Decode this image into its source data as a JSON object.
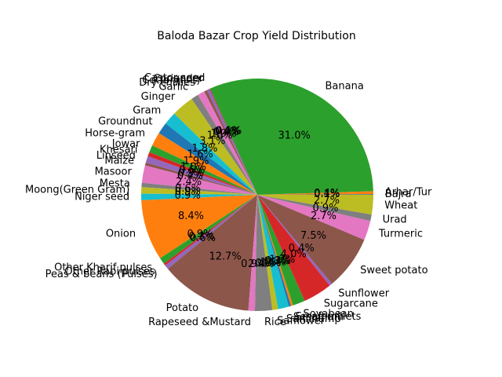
{
  "chart_data": {
    "type": "pie",
    "title": "Baloda Bazar Crop Yield Distribution",
    "start_angle_deg": 0,
    "direction": "counterclockwise",
    "slices": [
      {
        "label": "Bajra",
        "value": 0.1,
        "pct_label": "0.1%",
        "color": "#1f77b4"
      },
      {
        "label": "Arhar/Tur",
        "value": 0.4,
        "pct_label": "0.4%",
        "color": "#ff7f0e"
      },
      {
        "label": "Banana",
        "value": 31.0,
        "pct_label": "31.0%",
        "color": "#2ca02c"
      },
      {
        "label": "Castor seed",
        "value": 0.1,
        "pct_label": "0.1%",
        "color": "#d62728"
      },
      {
        "label": "Coriander",
        "value": 0.4,
        "pct_label": "0.4%",
        "color": "#9467bd"
      },
      {
        "label": "Cotton(lint)",
        "value": 0.4,
        "pct_label": "0.4%",
        "color": "#8c564b"
      },
      {
        "label": "Dry chillies",
        "value": 1.0,
        "pct_label": "1.0%",
        "color": "#e377c2"
      },
      {
        "label": "Garlic",
        "value": 1.0,
        "pct_label": "1.0%",
        "color": "#7f7f7f"
      },
      {
        "label": "Ginger",
        "value": 3.1,
        "pct_label": "3.1%",
        "color": "#bcbd22"
      },
      {
        "label": "Gram",
        "value": 1.8,
        "pct_label": "1.8%",
        "color": "#17becf"
      },
      {
        "label": "Groundnut",
        "value": 1.6,
        "pct_label": "1.6%",
        "color": "#1f77b4"
      },
      {
        "label": "Horse-gram",
        "value": 1.9,
        "pct_label": "1.9%",
        "color": "#ff7f0e"
      },
      {
        "label": "Jowar",
        "value": 1.0,
        "pct_label": "1.0%",
        "color": "#2ca02c"
      },
      {
        "label": "Khesari",
        "value": 0.6,
        "pct_label": "0.6%",
        "color": "#d62728"
      },
      {
        "label": "Linseed",
        "value": 0.9,
        "pct_label": "0.9%",
        "color": "#9467bd"
      },
      {
        "label": "Maize",
        "value": 0.4,
        "pct_label": "0.4%",
        "color": "#8c564b"
      },
      {
        "label": "Masoor",
        "value": 2.4,
        "pct_label": "2.4%",
        "color": "#e377c2"
      },
      {
        "label": "Mesta",
        "value": 0.6,
        "pct_label": "0.6%",
        "color": "#7f7f7f"
      },
      {
        "label": "Moong(Green Gram)",
        "value": 0.9,
        "pct_label": "0.9%",
        "color": "#bcbd22"
      },
      {
        "label": "Niger seed",
        "value": 0.9,
        "pct_label": "0.9%",
        "color": "#17becf"
      },
      {
        "label": "Onion",
        "value": 8.4,
        "pct_label": "8.4%",
        "color": "#ff7f0e"
      },
      {
        "label": "Other Kharif pulses",
        "value": 0.9,
        "pct_label": "0.9%",
        "color": "#2ca02c"
      },
      {
        "label": "Other Rabi pulses",
        "value": 0.3,
        "pct_label": "0.3%",
        "color": "#d62728"
      },
      {
        "label": "Peas & beans (Pulses)",
        "value": 0.6,
        "pct_label": "0.6%",
        "color": "#9467bd"
      },
      {
        "label": "Potato",
        "value": 12.7,
        "pct_label": "12.7%",
        "color": "#8c564b"
      },
      {
        "label": "Rapeseed &Mustard",
        "value": 0.9,
        "pct_label": "0.9%",
        "color": "#e377c2"
      },
      {
        "label": "Rice",
        "value": 2.4,
        "pct_label": "2.4%",
        "color": "#7f7f7f"
      },
      {
        "label": "Safflower",
        "value": 0.8,
        "pct_label": "0.8%",
        "color": "#bcbd22"
      },
      {
        "label": "Sannhamp",
        "value": 1.5,
        "pct_label": "1.5%",
        "color": "#17becf"
      },
      {
        "label": "Sesamum",
        "value": 0.3,
        "pct_label": "0.3%",
        "color": "#1f77b4"
      },
      {
        "label": "Small millets",
        "value": 0.3,
        "pct_label": "0.3%",
        "color": "#ff7f0e"
      },
      {
        "label": "Soyabean",
        "value": 1.7,
        "pct_label": "1.7%",
        "color": "#2ca02c"
      },
      {
        "label": "Sugarcane",
        "value": 4.0,
        "pct_label": "4.0%",
        "color": "#d62728"
      },
      {
        "label": "Sunflower",
        "value": 0.4,
        "pct_label": "0.4%",
        "color": "#9467bd"
      },
      {
        "label": "Sweet potato",
        "value": 7.5,
        "pct_label": "7.5%",
        "color": "#8c564b"
      },
      {
        "label": "Turmeric",
        "value": 2.7,
        "pct_label": "2.7%",
        "color": "#e377c2"
      },
      {
        "label": "Urad",
        "value": 0.9,
        "pct_label": "0.9%",
        "color": "#7f7f7f"
      },
      {
        "label": "Wheat",
        "value": 2.7,
        "pct_label": "2.7%",
        "color": "#bcbd22"
      }
    ]
  }
}
